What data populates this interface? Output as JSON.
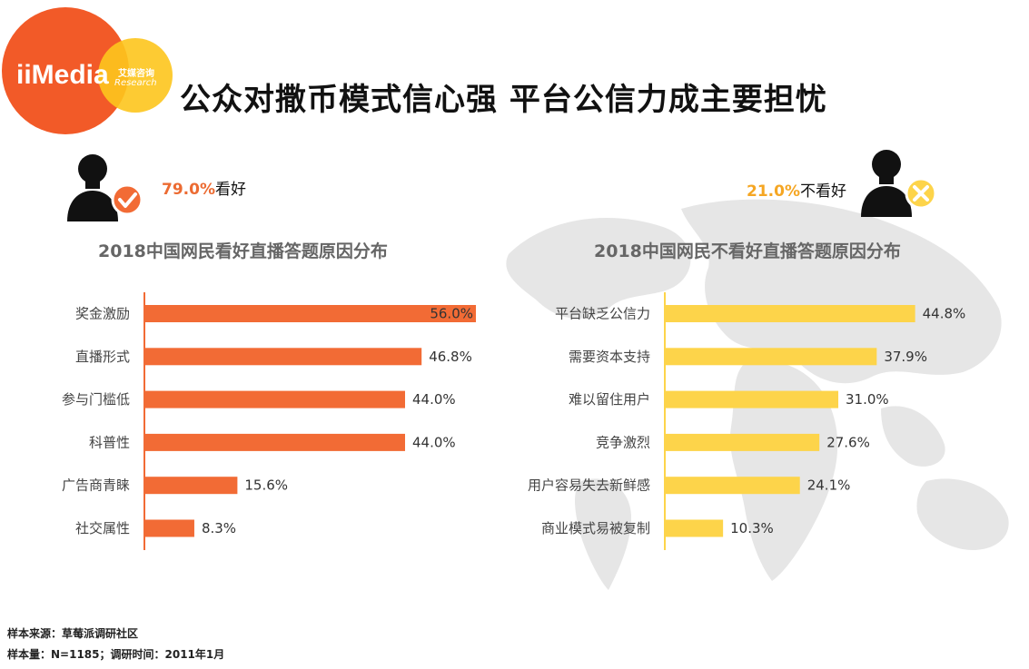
{
  "brand": {
    "logo_text": "iiMedia",
    "logo_cn": "艾媒咨询",
    "logo_en": "Research"
  },
  "title": "公众对撒币模式信心强  平台公信力成主要担忧",
  "sentiment": {
    "positive": {
      "value": "79.0%",
      "label": "看好"
    },
    "negative": {
      "value": "21.0%",
      "label": "不看好"
    }
  },
  "chart_data": [
    {
      "type": "bar",
      "orientation": "horizontal",
      "title": "2018中国网民看好直播答题原因分布",
      "categories": [
        "奖金激励",
        "直播形式",
        "参与门槛低",
        "科普性",
        "广告商青睐",
        "社交属性"
      ],
      "values": [
        56.0,
        46.8,
        44.0,
        44.0,
        15.6,
        8.3
      ],
      "value_labels": [
        "56.0%",
        "46.8%",
        "44.0%",
        "44.0%",
        "15.6%",
        "8.3%"
      ],
      "color": "#f26b35",
      "xlim": [
        0,
        60
      ]
    },
    {
      "type": "bar",
      "orientation": "horizontal",
      "title": "2018中国网民不看好直播答题原因分布",
      "categories": [
        "平台缺乏公信力",
        "需要资本支持",
        "难以留住用户",
        "竞争激烈",
        "用户容易失去新鲜感",
        "商业模式易被复制"
      ],
      "values": [
        44.8,
        37.9,
        31.0,
        27.6,
        24.1,
        10.3
      ],
      "value_labels": [
        "44.8%",
        "37.9%",
        "31.0%",
        "27.6%",
        "24.1%",
        "10.3%"
      ],
      "color": "#fdd44a",
      "xlim": [
        0,
        60
      ]
    }
  ],
  "footer": {
    "source": "样本来源：草莓派调研社区",
    "sample": "样本量：N=1185；调研时间：2011年1月"
  }
}
